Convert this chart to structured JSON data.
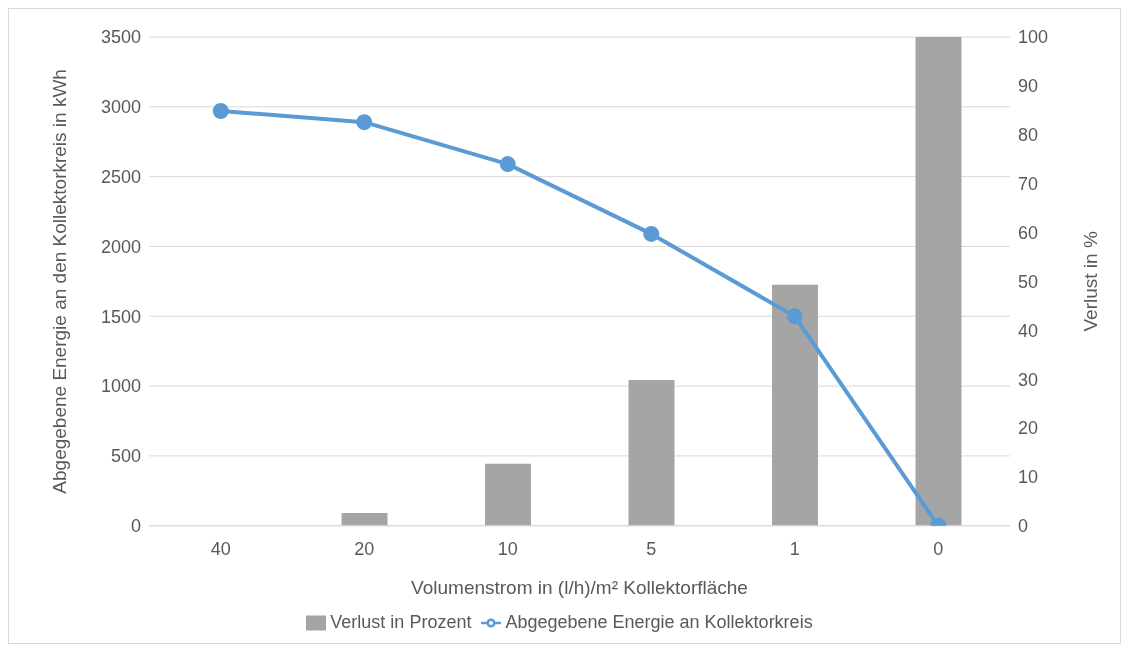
{
  "chart_data": {
    "type": "bar",
    "xlabel": "Volumenstrom in (l/h)/m² Kollektorfläche",
    "ylabel": "Abgegebene Energie an den Kollektorkreis in kWh",
    "y2label": "Verlust in %",
    "categories": [
      "40",
      "20",
      "10",
      "5",
      "1",
      "0"
    ],
    "series": [
      {
        "name": "Verlust in Prozent",
        "axis": "y2",
        "color": "#a5a5a5",
        "values": [
          0,
          2.6,
          12.7,
          29.8,
          49.3,
          100
        ]
      },
      {
        "name": "Abgegebene Energie an Kollektorkreis",
        "type": "line",
        "axis": "y",
        "color": "#5b9bd5",
        "values": [
          2970,
          2890,
          2590,
          2090,
          1500,
          0
        ]
      }
    ],
    "ylim": [
      0,
      3500
    ],
    "yticks": [
      0,
      500,
      1000,
      1500,
      2000,
      2500,
      3000,
      3500
    ],
    "y2lim": [
      0,
      100
    ],
    "y2ticks": [
      0,
      10,
      20,
      30,
      40,
      50,
      60,
      70,
      80,
      90,
      100
    ],
    "grid": "y",
    "legend": "bottom",
    "marker": "circle",
    "line_style": "solid"
  }
}
